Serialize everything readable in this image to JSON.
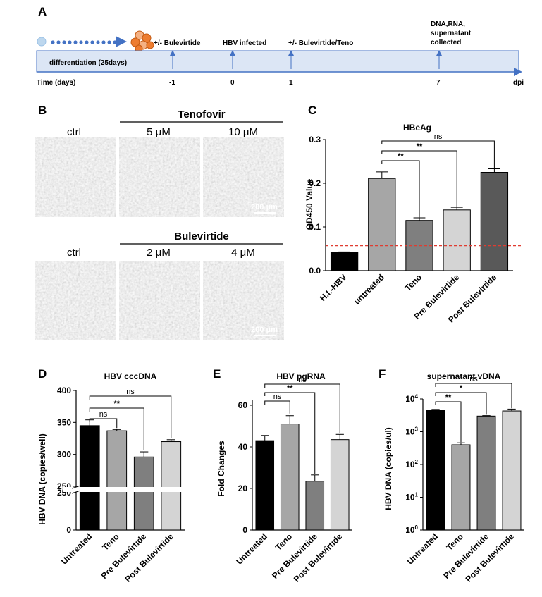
{
  "panels": {
    "a": "A",
    "b": "B",
    "c": "C",
    "d": "D",
    "e": "E",
    "f": "F"
  },
  "timeline": {
    "bar_label": "differentiation  (25days)",
    "time_label": "Time (days)",
    "dpi_label": "dpi",
    "events": [
      {
        "label": "+/- Bulevirtide",
        "day": "-1"
      },
      {
        "label": "HBV infected",
        "day": "0"
      },
      {
        "label": "+/- Bulevirtide/Teno",
        "day": "1"
      },
      {
        "label_lines": [
          "DNA,RNA,",
          "supernatant",
          "collected"
        ],
        "day": "7"
      }
    ],
    "colors": {
      "bar": "#dce6f5",
      "dots": "#4472c4",
      "cell": "#ed7d31",
      "stem": "#bdd7ee"
    }
  },
  "micrographs": {
    "row1": {
      "group": "Tenofovir",
      "conditions": [
        "ctrl",
        "5 μM",
        "10 μM"
      ],
      "scale_bar": "200 μm"
    },
    "row2": {
      "group": "Bulevirtide",
      "conditions": [
        "ctrl",
        "2 μM",
        "4 μM"
      ],
      "scale_bar": "200 μm"
    }
  },
  "chart_data": [
    {
      "panel": "C",
      "type": "bar",
      "title": "HBeAg",
      "ylabel": "OD450 Value",
      "categories": [
        "H.I.-HBV",
        "untreated",
        "Teno",
        "Pre Bulevirtide",
        "Post Bulevirtide"
      ],
      "values": [
        0.042,
        0.211,
        0.115,
        0.139,
        0.225
      ],
      "errors": [
        0.001,
        0.015,
        0.006,
        0.006,
        0.008
      ],
      "colors": [
        "#000000",
        "#a6a6a6",
        "#7f7f7f",
        "#d4d4d4",
        "#595959"
      ],
      "ylim": [
        0,
        0.3
      ],
      "yticks": [
        "0.0",
        "0.1",
        "0.2",
        "0.3"
      ],
      "ytick_values": [
        0,
        0.1,
        0.2,
        0.3
      ],
      "threshold": 0.057,
      "significance": [
        {
          "from": 1,
          "to": 2,
          "label": "**"
        },
        {
          "from": 1,
          "to": 3,
          "label": "**"
        },
        {
          "from": 1,
          "to": 4,
          "label": "ns"
        }
      ]
    },
    {
      "panel": "D",
      "type": "bar",
      "title": "HBV cccDNA",
      "ylabel": "HBV DNA (copies/well)",
      "categories": [
        "Untreated",
        "Teno",
        "Pre Bulevirtide",
        "Post Bulevirtide"
      ],
      "values": [
        345,
        337,
        296,
        320
      ],
      "errors": [
        9,
        2,
        8,
        3
      ],
      "colors": [
        "#000000",
        "#a6a6a6",
        "#7f7f7f",
        "#d4d4d4"
      ],
      "axis_break": {
        "lower": [
          0,
          250
        ],
        "upper": [
          250,
          400
        ]
      },
      "yticks_lower": [
        "0",
        "250"
      ],
      "ytick_values_lower": [
        0,
        250
      ],
      "yticks_upper": [
        "250",
        "300",
        "350",
        "400"
      ],
      "ytick_values_upper": [
        250,
        300,
        350,
        400
      ],
      "significance": [
        {
          "from": 0,
          "to": 1,
          "label": "ns"
        },
        {
          "from": 0,
          "to": 2,
          "label": "**"
        },
        {
          "from": 0,
          "to": 3,
          "label": "ns"
        }
      ]
    },
    {
      "panel": "E",
      "type": "bar",
      "title": "HBV pgRNA",
      "ylabel": "Fold Changes",
      "categories": [
        "Untreated",
        "Teno",
        "Pre Bulevirtide",
        "Post Bulevirtide"
      ],
      "values": [
        43,
        51,
        23.5,
        43.5
      ],
      "errors": [
        2.5,
        4,
        3,
        2.5
      ],
      "colors": [
        "#000000",
        "#a6a6a6",
        "#7f7f7f",
        "#d4d4d4"
      ],
      "ylim": [
        0,
        60
      ],
      "yticks": [
        "0",
        "20",
        "40",
        "60"
      ],
      "ytick_values": [
        0,
        20,
        40,
        60
      ],
      "significance": [
        {
          "from": 0,
          "to": 1,
          "label": "ns"
        },
        {
          "from": 0,
          "to": 2,
          "label": "**"
        },
        {
          "from": 0,
          "to": 3,
          "label": "ns"
        }
      ]
    },
    {
      "panel": "F",
      "type": "bar",
      "title": "supernatant vDNA",
      "ylabel": "HBV DNA (copies/ul)",
      "yscale": "log",
      "categories": [
        "Untreated",
        "Teno",
        "Pre Bulevirtide",
        "Post Bulevirtide"
      ],
      "values": [
        4500,
        400,
        3000,
        4300
      ],
      "errors_upper": [
        4800,
        460,
        3100,
        4900
      ],
      "colors": [
        "#000000",
        "#a6a6a6",
        "#7f7f7f",
        "#d4d4d4"
      ],
      "ylim": [
        1,
        10000
      ],
      "ytick_exponents": [
        "0",
        "1",
        "2",
        "3",
        "4"
      ],
      "significance": [
        {
          "from": 0,
          "to": 1,
          "label": "**"
        },
        {
          "from": 0,
          "to": 2,
          "label": "*"
        },
        {
          "from": 0,
          "to": 3,
          "label": "ns"
        }
      ]
    }
  ]
}
